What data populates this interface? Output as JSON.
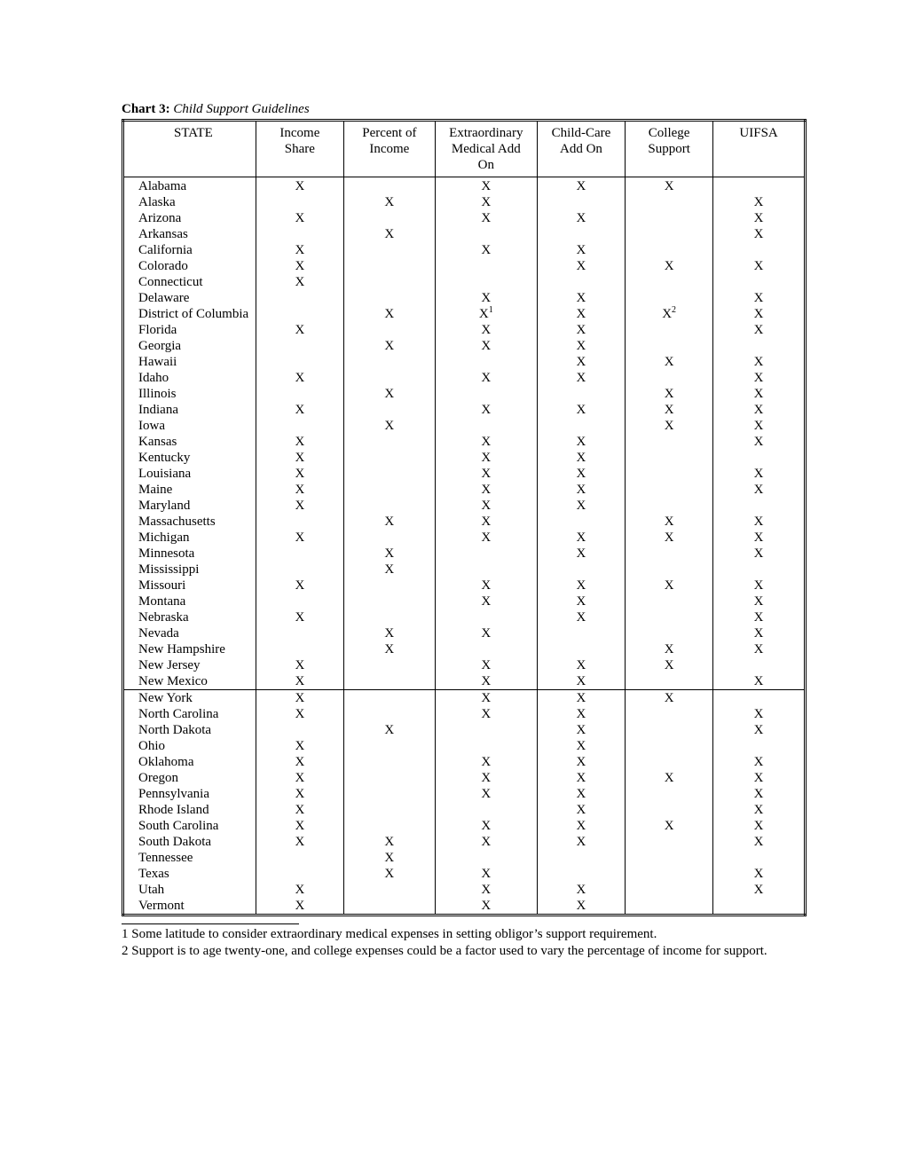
{
  "chart": {
    "label_bold": "Chart 3:",
    "label_italic": "Child Support Guidelines",
    "mark": "X",
    "columns": [
      "STATE",
      "Income Share",
      "Percent of Income",
      "Extraordinary Medical Add On",
      "Child-Care Add On",
      "College Support",
      "UIFSA"
    ],
    "rows": [
      {
        "state": "Alabama",
        "c": [
          true,
          false,
          true,
          true,
          true,
          false
        ],
        "section_break": false
      },
      {
        "state": "Alaska",
        "c": [
          false,
          true,
          true,
          false,
          false,
          true
        ],
        "section_break": false
      },
      {
        "state": "Arizona",
        "c": [
          true,
          false,
          true,
          true,
          false,
          true
        ],
        "section_break": false
      },
      {
        "state": "Arkansas",
        "c": [
          false,
          true,
          false,
          false,
          false,
          true
        ],
        "section_break": false
      },
      {
        "state": "California",
        "c": [
          true,
          false,
          true,
          true,
          false,
          false
        ],
        "section_break": false
      },
      {
        "state": "Colorado",
        "c": [
          true,
          false,
          false,
          true,
          true,
          true
        ],
        "section_break": false
      },
      {
        "state": "Connecticut",
        "c": [
          true,
          false,
          false,
          false,
          false,
          false
        ],
        "section_break": false
      },
      {
        "state": "Delaware",
        "c": [
          false,
          false,
          true,
          true,
          false,
          true
        ],
        "section_break": false
      },
      {
        "state": "District of Columbia",
        "c": [
          false,
          true,
          "sup1",
          true,
          "sup2",
          true
        ],
        "section_break": false
      },
      {
        "state": "Florida",
        "c": [
          true,
          false,
          true,
          true,
          false,
          true
        ],
        "section_break": false
      },
      {
        "state": "Georgia",
        "c": [
          false,
          true,
          true,
          true,
          false,
          false
        ],
        "section_break": false
      },
      {
        "state": "Hawaii",
        "c": [
          false,
          false,
          false,
          true,
          true,
          true
        ],
        "section_break": false
      },
      {
        "state": "Idaho",
        "c": [
          true,
          false,
          true,
          true,
          false,
          true
        ],
        "section_break": false
      },
      {
        "state": "Illinois",
        "c": [
          false,
          true,
          false,
          false,
          true,
          true
        ],
        "section_break": false
      },
      {
        "state": "Indiana",
        "c": [
          true,
          false,
          true,
          true,
          true,
          true
        ],
        "section_break": false
      },
      {
        "state": "Iowa",
        "c": [
          false,
          true,
          false,
          false,
          true,
          true
        ],
        "section_break": false
      },
      {
        "state": "Kansas",
        "c": [
          true,
          false,
          true,
          true,
          false,
          true
        ],
        "section_break": false
      },
      {
        "state": "Kentucky",
        "c": [
          true,
          false,
          true,
          true,
          false,
          false
        ],
        "section_break": false
      },
      {
        "state": "Louisiana",
        "c": [
          true,
          false,
          true,
          true,
          false,
          true
        ],
        "section_break": false
      },
      {
        "state": "Maine",
        "c": [
          true,
          false,
          true,
          true,
          false,
          true
        ],
        "section_break": false
      },
      {
        "state": "Maryland",
        "c": [
          true,
          false,
          true,
          true,
          false,
          false
        ],
        "section_break": false
      },
      {
        "state": "Massachusetts",
        "c": [
          false,
          true,
          true,
          false,
          true,
          true
        ],
        "section_break": false
      },
      {
        "state": "Michigan",
        "c": [
          true,
          false,
          true,
          true,
          true,
          true
        ],
        "section_break": false
      },
      {
        "state": "Minnesota",
        "c": [
          false,
          true,
          false,
          true,
          false,
          true
        ],
        "section_break": false
      },
      {
        "state": "Mississippi",
        "c": [
          false,
          true,
          false,
          false,
          false,
          false
        ],
        "section_break": false
      },
      {
        "state": "Missouri",
        "c": [
          true,
          false,
          true,
          true,
          true,
          true
        ],
        "section_break": false
      },
      {
        "state": "Montana",
        "c": [
          false,
          false,
          true,
          true,
          false,
          true
        ],
        "section_break": false
      },
      {
        "state": "Nebraska",
        "c": [
          true,
          false,
          false,
          true,
          false,
          true
        ],
        "section_break": false
      },
      {
        "state": "Nevada",
        "c": [
          false,
          true,
          true,
          false,
          false,
          true
        ],
        "section_break": false
      },
      {
        "state": "New Hampshire",
        "c": [
          false,
          true,
          false,
          false,
          true,
          true
        ],
        "section_break": false
      },
      {
        "state": "New Jersey",
        "c": [
          true,
          false,
          true,
          true,
          true,
          false
        ],
        "section_break": false
      },
      {
        "state": "New Mexico",
        "c": [
          true,
          false,
          true,
          true,
          false,
          true
        ],
        "section_break": false
      },
      {
        "state": "New York",
        "c": [
          true,
          false,
          true,
          true,
          true,
          false
        ],
        "section_break": true
      },
      {
        "state": "North Carolina",
        "c": [
          true,
          false,
          true,
          true,
          false,
          true
        ],
        "section_break": false
      },
      {
        "state": "North Dakota",
        "c": [
          false,
          true,
          false,
          true,
          false,
          true
        ],
        "section_break": false
      },
      {
        "state": "Ohio",
        "c": [
          true,
          false,
          false,
          true,
          false,
          false
        ],
        "section_break": false
      },
      {
        "state": "Oklahoma",
        "c": [
          true,
          false,
          true,
          true,
          false,
          true
        ],
        "section_break": false
      },
      {
        "state": "Oregon",
        "c": [
          true,
          false,
          true,
          true,
          true,
          true
        ],
        "section_break": false
      },
      {
        "state": "Pennsylvania",
        "c": [
          true,
          false,
          true,
          true,
          false,
          true
        ],
        "section_break": false
      },
      {
        "state": "Rhode Island",
        "c": [
          true,
          false,
          false,
          true,
          false,
          true
        ],
        "section_break": false
      },
      {
        "state": "South Carolina",
        "c": [
          true,
          false,
          true,
          true,
          true,
          true
        ],
        "section_break": false
      },
      {
        "state": "South Dakota",
        "c": [
          true,
          true,
          true,
          true,
          false,
          true
        ],
        "section_break": false
      },
      {
        "state": "Tennessee",
        "c": [
          false,
          true,
          false,
          false,
          false,
          false
        ],
        "section_break": false
      },
      {
        "state": "Texas",
        "c": [
          false,
          true,
          true,
          false,
          false,
          true
        ],
        "section_break": false
      },
      {
        "state": "Utah",
        "c": [
          true,
          false,
          true,
          true,
          false,
          true
        ],
        "section_break": false
      },
      {
        "state": "Vermont",
        "c": [
          true,
          false,
          true,
          true,
          false,
          false
        ],
        "section_break": false
      }
    ],
    "footnotes": [
      "1 Some latitude to consider extraordinary medical expenses in setting obligor’s support requirement.",
      "2 Support is to age twenty-one, and college expenses could be a factor used to vary the percentage of income for support."
    ],
    "sup_labels": {
      "sup1": "1",
      "sup2": "2"
    }
  }
}
